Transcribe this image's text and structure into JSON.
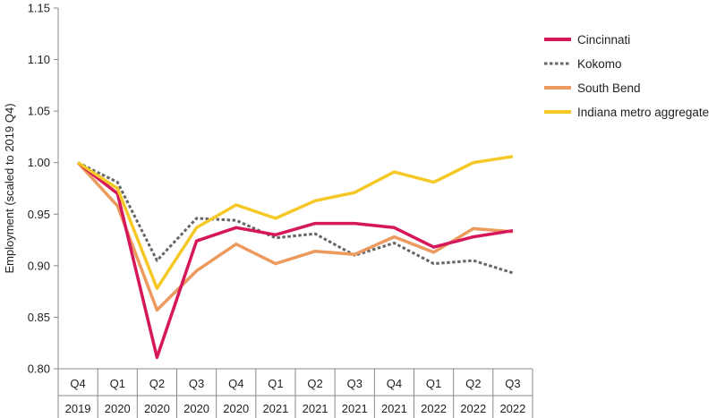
{
  "chart_data": {
    "type": "line",
    "title": "",
    "xlabel": "",
    "ylabel": "Employment (scaled to 2019 Q4)",
    "ylim": [
      0.8,
      1.15
    ],
    "yticks": [
      "0.80",
      "0.85",
      "0.90",
      "0.95",
      "1.00",
      "1.05",
      "1.10",
      "1.15"
    ],
    "grid": false,
    "legend_position": "top-right",
    "categories": [
      {
        "quarter": "Q4",
        "year": "2019"
      },
      {
        "quarter": "Q1",
        "year": "2020"
      },
      {
        "quarter": "Q2",
        "year": "2020"
      },
      {
        "quarter": "Q3",
        "year": "2020"
      },
      {
        "quarter": "Q4",
        "year": "2020"
      },
      {
        "quarter": "Q1",
        "year": "2021"
      },
      {
        "quarter": "Q2",
        "year": "2021"
      },
      {
        "quarter": "Q3",
        "year": "2021"
      },
      {
        "quarter": "Q4",
        "year": "2021"
      },
      {
        "quarter": "Q1",
        "year": "2022"
      },
      {
        "quarter": "Q2",
        "year": "2022"
      },
      {
        "quarter": "Q3",
        "year": "2022"
      }
    ],
    "series": [
      {
        "name": "Cincinnati",
        "color": "#d6175c",
        "style": "solid",
        "values": [
          1.0,
          0.97,
          0.811,
          0.924,
          0.937,
          0.93,
          0.941,
          0.941,
          0.937,
          0.918,
          0.928,
          0.934
        ]
      },
      {
        "name": "Kokomo",
        "color": "#666666",
        "style": "dotted",
        "values": [
          1.0,
          0.981,
          0.905,
          0.946,
          0.944,
          0.927,
          0.931,
          0.91,
          0.922,
          0.902,
          0.905,
          0.893
        ]
      },
      {
        "name": "South Bend",
        "color": "#ec9a5e",
        "style": "solid",
        "values": [
          1.0,
          0.958,
          0.857,
          0.895,
          0.921,
          0.902,
          0.914,
          0.911,
          0.928,
          0.913,
          0.936,
          0.933
        ]
      },
      {
        "name": "Indiana metro aggregate",
        "color": "#f5c826",
        "style": "solid",
        "values": [
          1.0,
          0.975,
          0.878,
          0.937,
          0.959,
          0.946,
          0.963,
          0.971,
          0.991,
          0.981,
          1.0,
          1.006
        ]
      }
    ]
  }
}
